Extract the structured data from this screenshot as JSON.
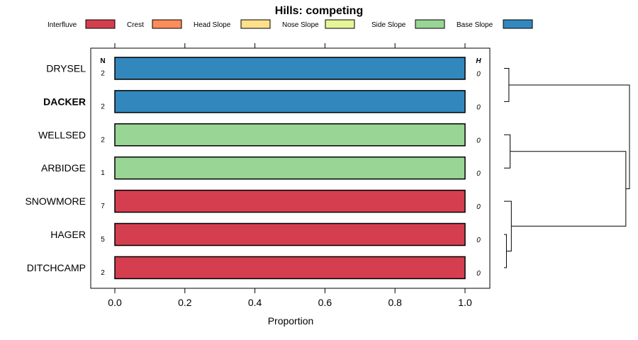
{
  "chart_data": {
    "type": "bar",
    "orientation": "horizontal",
    "stacked": true,
    "title": "Hills: competing",
    "xlabel": "Proportion",
    "ylabel": "",
    "xlim": [
      0,
      1
    ],
    "x_ticks": [
      "0.0",
      "0.2",
      "0.4",
      "0.6",
      "0.8",
      "1.0"
    ],
    "x_tick_values": [
      0,
      0.2,
      0.4,
      0.6,
      0.8,
      1.0
    ],
    "legend": [
      {
        "name": "Interfluve",
        "color": "#d53e4f"
      },
      {
        "name": "Crest",
        "color": "#fc8d59"
      },
      {
        "name": "Head Slope",
        "color": "#fee08b"
      },
      {
        "name": "Nose Slope",
        "color": "#e6f598"
      },
      {
        "name": "Side Slope",
        "color": "#99d594"
      },
      {
        "name": "Base Slope",
        "color": "#3288bd"
      }
    ],
    "n_header": "N",
    "h_header": "H",
    "rows": [
      {
        "name": "DRYSEL",
        "bold": false,
        "n": "2",
        "h": "0",
        "segments": [
          {
            "class": "Base Slope",
            "value": 1.0
          }
        ]
      },
      {
        "name": "DACKER",
        "bold": true,
        "n": "2",
        "h": "0",
        "segments": [
          {
            "class": "Base Slope",
            "value": 1.0
          }
        ]
      },
      {
        "name": "WELLSED",
        "bold": false,
        "n": "2",
        "h": "0",
        "segments": [
          {
            "class": "Side Slope",
            "value": 1.0
          }
        ]
      },
      {
        "name": "ARBIDGE",
        "bold": false,
        "n": "1",
        "h": "0",
        "segments": [
          {
            "class": "Side Slope",
            "value": 1.0
          }
        ]
      },
      {
        "name": "SNOWMORE",
        "bold": false,
        "n": "7",
        "h": "0",
        "segments": [
          {
            "class": "Interfluve",
            "value": 1.0
          }
        ]
      },
      {
        "name": "HAGER",
        "bold": false,
        "n": "5",
        "h": "0",
        "segments": [
          {
            "class": "Interfluve",
            "value": 1.0
          }
        ]
      },
      {
        "name": "DITCHCAMP",
        "bold": false,
        "n": "2",
        "h": "0",
        "segments": [
          {
            "class": "Interfluve",
            "value": 1.0
          }
        ]
      }
    ],
    "dendrogram": {
      "leaves": [
        "DRYSEL",
        "DACKER",
        "WELLSED",
        "ARBIDGE",
        "SNOWMORE",
        "HAGER",
        "DITCHCAMP"
      ],
      "merges": [
        {
          "a": "HAGER",
          "b": "DITCHCAMP",
          "height": 0.02
        },
        {
          "a": "DRYSEL",
          "b": "DACKER",
          "height": 0.04
        },
        {
          "a": "WELLSED",
          "b": "ARBIDGE",
          "height": 0.05
        },
        {
          "a": "SNOWMORE",
          "b": "HAGER+DITCHCAMP",
          "height": 0.06
        },
        {
          "a": "WELLSED+ARBIDGE",
          "b": "SNOWMORE+HAGER+DITCHCAMP",
          "height": 1.0
        },
        {
          "a": "DRYSEL+DACKER",
          "b": "rest",
          "height": 1.03
        }
      ]
    }
  }
}
